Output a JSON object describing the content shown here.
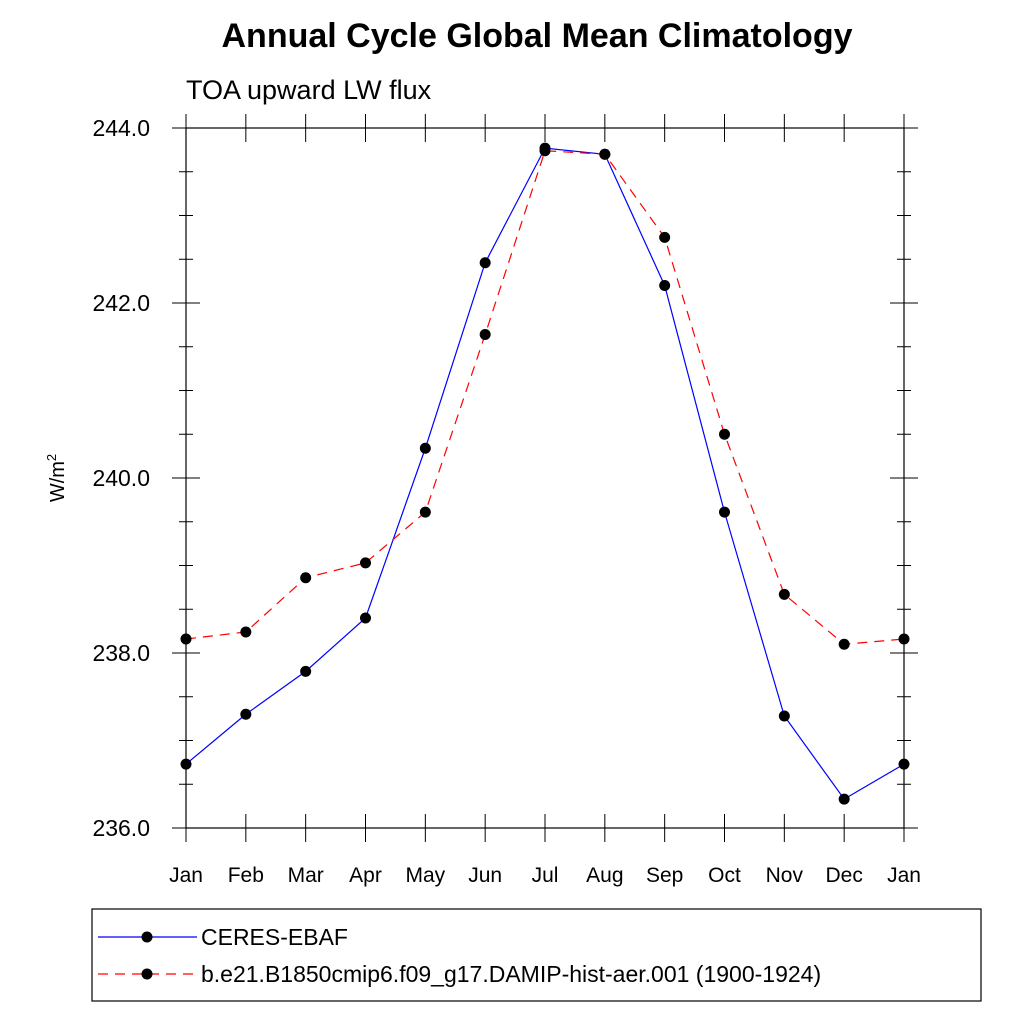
{
  "chart_data": {
    "type": "line",
    "title": "Annual Cycle Global Mean Climatology",
    "subtitle": "TOA upward LW flux",
    "ylabel": "W/m",
    "ylabel_superscript": "2",
    "xlabel": "",
    "categories": [
      "Jan",
      "Feb",
      "Mar",
      "Apr",
      "May",
      "Jun",
      "Jul",
      "Aug",
      "Sep",
      "Oct",
      "Nov",
      "Dec",
      "Jan"
    ],
    "ylim": [
      236.0,
      244.0
    ],
    "yticks": [
      "236.0",
      "238.0",
      "240.0",
      "242.0",
      "244.0"
    ],
    "series": [
      {
        "name": "CERES-EBAF",
        "color": "#0000ff",
        "dash": "solid",
        "values": [
          236.73,
          237.3,
          237.79,
          238.4,
          240.34,
          242.46,
          243.77,
          243.7,
          242.2,
          239.61,
          237.28,
          236.33,
          236.73
        ]
      },
      {
        "name": "b.e21.B1850cmip6.f09_g17.DAMIP-hist-aer.001 (1900-1924)",
        "color": "#ff0000",
        "dash": "dashed",
        "values": [
          238.16,
          238.24,
          238.86,
          239.03,
          239.61,
          241.64,
          243.74,
          243.7,
          242.75,
          240.5,
          238.67,
          238.1,
          238.16
        ]
      }
    ],
    "grid": false,
    "legend_position": "bottom"
  }
}
